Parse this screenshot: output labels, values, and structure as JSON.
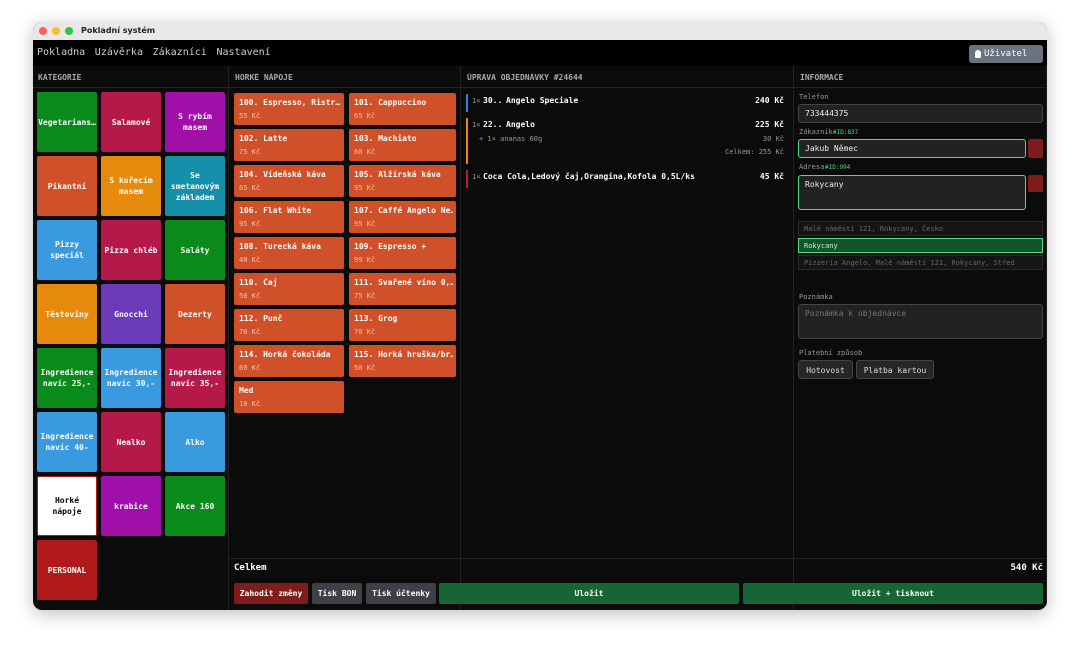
{
  "window_title": "Pokladní systém",
  "menu": [
    "Pokladna",
    "Uzávěrka",
    "Zákazníci",
    "Nastavení"
  ],
  "user": "Uživatel",
  "categories": {
    "header": "KATEGORIE",
    "items": [
      {
        "label": "Vegetarians…",
        "color": "#0a8a1a"
      },
      {
        "label": "Salamové",
        "color": "#b5194a"
      },
      {
        "label": "S rybím masem",
        "color": "#a010a8"
      },
      {
        "label": "Pikantní",
        "color": "#d0502a"
      },
      {
        "label": "S kuřecím masem",
        "color": "#e58a0c"
      },
      {
        "label": "Se smetanovým základem",
        "color": "#1690a8"
      },
      {
        "label": "Pizzy speciál",
        "color": "#3a9ae0"
      },
      {
        "label": "Pizza chléb",
        "color": "#b5194a"
      },
      {
        "label": "Saláty",
        "color": "#0a8a1a"
      },
      {
        "label": "Těstoviny",
        "color": "#e58a0c"
      },
      {
        "label": "Gnocchi",
        "color": "#6a3ab8"
      },
      {
        "label": "Dezerty",
        "color": "#d0502a"
      },
      {
        "label": "Ingredience navíc 25,-",
        "color": "#0a8a1a"
      },
      {
        "label": "Ingredience navíc 30,-",
        "color": "#3a9ae0"
      },
      {
        "label": "Ingredience navíc 35,-",
        "color": "#b5194a"
      },
      {
        "label": "Ingredience navíc 40-",
        "color": "#3a9ae0"
      },
      {
        "label": "Nealko",
        "color": "#b5194a"
      },
      {
        "label": "Alko",
        "color": "#3a9ae0"
      },
      {
        "label": "Horké nápoje",
        "color": "#ffffff"
      },
      {
        "label": "krabice",
        "color": "#a010a8"
      },
      {
        "label": "Akce 160",
        "color": "#0a8a1a"
      },
      {
        "label": "PERSONAL",
        "color": "#b01a1a"
      }
    ]
  },
  "products": {
    "header": "HORKÉ NÁPOJE",
    "color": "#d0502a",
    "items": [
      {
        "name": "100. Espresso, Ristr…",
        "price": "55 Kč"
      },
      {
        "name": "101. Cappuccino",
        "price": "65 Kč"
      },
      {
        "name": "102. Latte",
        "price": "75 Kč"
      },
      {
        "name": "103. Machiato",
        "price": "60 Kč"
      },
      {
        "name": "104. Vídeňská káva",
        "price": "65 Kč"
      },
      {
        "name": "105. Alžírská káva",
        "price": "95 Kč"
      },
      {
        "name": "106. Flat White",
        "price": "95 Kč"
      },
      {
        "name": "107. Caffé Angelo Ne…",
        "price": "95 Kč"
      },
      {
        "name": "108. Turecká káva",
        "price": "40 Kč"
      },
      {
        "name": "109. Espresso +",
        "price": "99 Kč"
      },
      {
        "name": "110. Čaj",
        "price": "50 Kč"
      },
      {
        "name": "111. Svařené víno 0,…",
        "price": "75 Kč"
      },
      {
        "name": "112. Punč",
        "price": "70 Kč"
      },
      {
        "name": "113. Grog",
        "price": "70 Kč"
      },
      {
        "name": "114. Horká čokoláda",
        "price": "60 Kč"
      },
      {
        "name": "115. Horká hruška/br…",
        "price": "50 Kč"
      },
      {
        "name": "Med",
        "price": "10 Kč"
      }
    ]
  },
  "order": {
    "header": "ÚPRAVA OBJEDNÁVKY #24644",
    "lines": [
      {
        "qty": "1×",
        "code": "30..",
        "name": "Angelo Speciale",
        "price": "240 Kč",
        "color": "#3a7ad8"
      },
      {
        "qty": "1×",
        "code": "22..",
        "name": "Angelo",
        "price": "225 Kč",
        "color": "#e58a0c",
        "extra": "+ 1× ananas 60g",
        "extra_price": "30 Kč",
        "subtotal": "Celkem: 255 Kč"
      },
      {
        "qty": "1×",
        "code": "",
        "name": "Coca Cola,Ledový čaj,Orangina,Kofola 0,5L/ks",
        "price": "45 Kč",
        "color": "#b5194a"
      }
    ]
  },
  "info": {
    "header": "INFORMACE",
    "phone_label": "Telefon",
    "phone": "733444375",
    "customer_label": "Zákazník",
    "customer_id": "#ID:837",
    "customer": "Jakub Němec",
    "address_label": "Adresa",
    "address_id": "#ID:994",
    "address": "Rokycany",
    "suggestions": [
      "Malé náměstí 121, Rokycany, Česko",
      "Rokycany",
      "Pizzeria Angelo, Malé náměstí 121, Rokycany, Střed"
    ],
    "note_label": "Poznámka",
    "note_placeholder": "Poznámka k objednávce",
    "payment_label": "Platební způsob",
    "payments": [
      "Hotovost",
      "Platba kartou"
    ]
  },
  "footer": {
    "total_label": "Celkem",
    "total": "540 Kč",
    "buttons": [
      "Zahodit změny",
      "Tisk BON",
      "Tisk účtenky",
      "Uložit",
      "Uložit + tisknout"
    ]
  }
}
